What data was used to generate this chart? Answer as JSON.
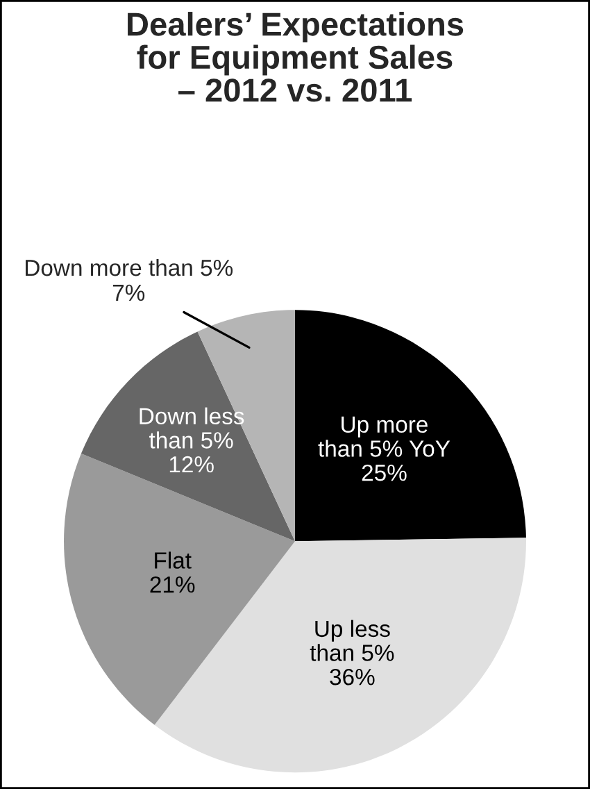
{
  "chart_data": {
    "type": "pie",
    "title": "Dealers’ Expectations\nfor Equipment Sales\n– 2012 vs. 2011",
    "categories": [
      "Up more\nthan 5% YoY",
      "Up less\nthan 5%",
      "Flat",
      "Down less\nthan 5%",
      "Down more than 5%"
    ],
    "values": [
      25,
      36,
      21,
      12,
      7
    ],
    "value_labels": [
      "25%",
      "36%",
      "21%",
      "12%",
      "7%"
    ],
    "colors": [
      "#000000",
      "#e0e0e0",
      "#9a9a9a",
      "#666666",
      "#b5b5b5"
    ],
    "legend": false
  }
}
